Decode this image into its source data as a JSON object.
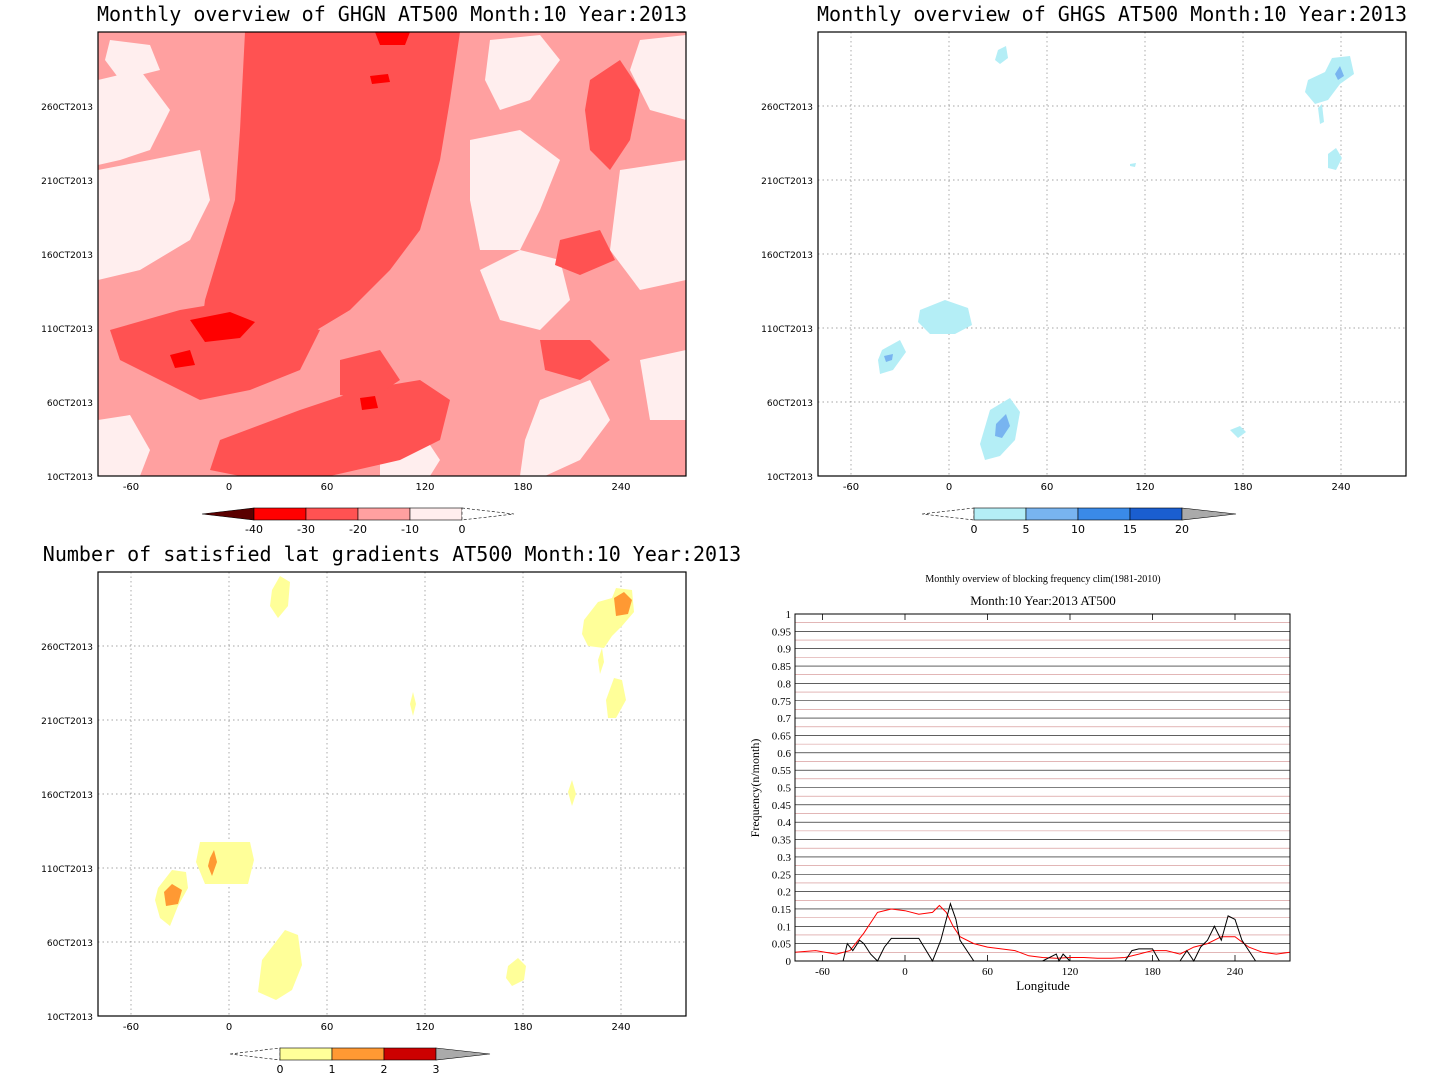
{
  "panels": {
    "ghgn": {
      "title": "Monthly overview of GHGN AT500 Month:10 Year:2013",
      "x_ticks": [
        "-60",
        "0",
        "60",
        "120",
        "180",
        "240"
      ],
      "y_ticks": [
        "10CT2013",
        "60CT2013",
        "110CT2013",
        "160CT2013",
        "210CT2013",
        "260CT2013"
      ],
      "colorbar_labels": [
        "-40",
        "-30",
        "-20",
        "-10",
        "0"
      ],
      "colors": [
        "#5a0000",
        "#ff0000",
        "#ff5252",
        "#ffa0a0",
        "#ffeeee"
      ]
    },
    "ghgs": {
      "title": "Monthly overview of GHGS AT500 Month:10 Year:2013",
      "x_ticks": [
        "-60",
        "0",
        "60",
        "120",
        "180",
        "240"
      ],
      "y_ticks": [
        "10CT2013",
        "60CT2013",
        "110CT2013",
        "160CT2013",
        "210CT2013",
        "260CT2013"
      ],
      "colorbar_labels": [
        "0",
        "5",
        "10",
        "15",
        "20"
      ],
      "colors": [
        "#b4eef6",
        "#78b4f0",
        "#3a8ae8",
        "#1a5ed0",
        "#aaaaaa"
      ]
    },
    "gradients": {
      "title": "Number of satisfied lat gradients AT500 Month:10 Year:2013",
      "x_ticks": [
        "-60",
        "0",
        "60",
        "120",
        "180",
        "240"
      ],
      "y_ticks": [
        "10CT2013",
        "60CT2013",
        "110CT2013",
        "160CT2013",
        "210CT2013",
        "260CT2013"
      ],
      "colorbar_labels": [
        "0",
        "1",
        "2",
        "3"
      ],
      "colors": [
        "#ffff99",
        "#ff9933",
        "#cc0000",
        "#aaaaaa"
      ]
    },
    "frequency": {
      "suptitle": "Monthly overview of blocking frequency clim(1981-2010)",
      "title": "Month:10 Year:2013  AT500",
      "xlabel": "Longitude",
      "ylabel": "Frequency(n/month)"
    }
  },
  "chart_data": [
    {
      "type": "heatmap",
      "title": "Monthly overview of GHGN AT500 Month:10 Year:2013",
      "x_ticks": [
        -60,
        0,
        60,
        120,
        180,
        240
      ],
      "y_ticks": [
        "10CT2013",
        "60CT2013",
        "110CT2013",
        "160CT2013",
        "210CT2013",
        "260CT2013"
      ],
      "levels": [
        -40,
        -30,
        -20,
        -10,
        0
      ]
    },
    {
      "type": "heatmap",
      "title": "Monthly overview of GHGS AT500 Month:10 Year:2013",
      "x_ticks": [
        -60,
        0,
        60,
        120,
        180,
        240
      ],
      "y_ticks": [
        "10CT2013",
        "60CT2013",
        "110CT2013",
        "160CT2013",
        "210CT2013",
        "260CT2013"
      ],
      "levels": [
        0,
        5,
        10,
        15,
        20
      ]
    },
    {
      "type": "heatmap",
      "title": "Number of satisfied lat gradients AT500 Month:10 Year:2013",
      "x_ticks": [
        -60,
        0,
        60,
        120,
        180,
        240
      ],
      "y_ticks": [
        "10CT2013",
        "60CT2013",
        "110CT2013",
        "160CT2013",
        "210CT2013",
        "260CT2013"
      ],
      "levels": [
        0,
        1,
        2,
        3
      ]
    },
    {
      "type": "line",
      "title": "Month:10 Year:2013  AT500",
      "subtitle": "Monthly overview of blocking frequency clim(1981-2010)",
      "xlabel": "Longitude",
      "ylabel": "Frequency(n/month)",
      "xlim": [
        -80,
        280
      ],
      "ylim": [
        0,
        1
      ],
      "x_ticks": [
        -60,
        0,
        60,
        120,
        180,
        240
      ],
      "y_ticks": [
        0,
        0.05,
        0.1,
        0.15,
        0.2,
        0.25,
        0.3,
        0.35,
        0.4,
        0.45,
        0.5,
        0.55,
        0.6,
        0.65,
        0.7,
        0.75,
        0.8,
        0.85,
        0.9,
        0.95,
        1
      ],
      "series": [
        {
          "color": "#ff0000",
          "x": [
            -80,
            -65,
            -50,
            -40,
            -30,
            -20,
            -10,
            0,
            10,
            20,
            25,
            30,
            35,
            40,
            50,
            60,
            70,
            80,
            90,
            100,
            110,
            120,
            130,
            140,
            150,
            160,
            170,
            180,
            190,
            200,
            210,
            220,
            230,
            240,
            250,
            260,
            270,
            280
          ],
          "y": [
            0.025,
            0.03,
            0.02,
            0.03,
            0.08,
            0.14,
            0.15,
            0.145,
            0.135,
            0.14,
            0.16,
            0.14,
            0.1,
            0.07,
            0.05,
            0.04,
            0.035,
            0.03,
            0.015,
            0.01,
            0.008,
            0.01,
            0.01,
            0.008,
            0.008,
            0.01,
            0.02,
            0.03,
            0.03,
            0.02,
            0.04,
            0.05,
            0.07,
            0.07,
            0.04,
            0.025,
            0.02,
            0.025
          ]
        },
        {
          "color": "#000000",
          "x": [
            -80,
            -60,
            -45,
            -42,
            -38,
            -33,
            -30,
            -25,
            -20,
            -15,
            -10,
            0,
            10,
            20,
            22,
            26,
            30,
            33,
            37,
            40,
            45,
            50,
            60,
            100,
            110,
            112,
            115,
            120,
            160,
            165,
            170,
            180,
            185,
            200,
            205,
            210,
            215,
            220,
            225,
            230,
            235,
            240,
            245,
            250,
            255,
            280
          ],
          "y": [
            0,
            0,
            0,
            0.05,
            0.03,
            0.06,
            0.05,
            0.02,
            0.0,
            0.04,
            0.065,
            0.065,
            0.065,
            0.0,
            0.02,
            0.06,
            0.12,
            0.165,
            0.12,
            0.06,
            0.03,
            0.0,
            0.0,
            0.0,
            0.02,
            0.0,
            0.02,
            0.0,
            0.0,
            0.03,
            0.035,
            0.035,
            0.0,
            0.0,
            0.03,
            0.0,
            0.04,
            0.06,
            0.1,
            0.06,
            0.13,
            0.12,
            0.06,
            0.03,
            0.0,
            0.0
          ]
        }
      ]
    }
  ]
}
